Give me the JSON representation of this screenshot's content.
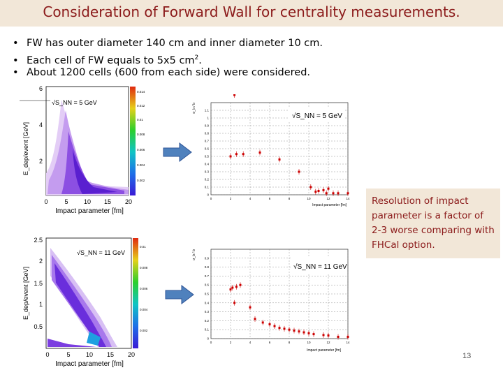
{
  "slide": {
    "title": "Consideration of  Forward Wall for centrality measurements.",
    "bullets": [
      "FW has outer diameter 140 cm and inner diameter 10 cm.",
      "Each cell of FW equals to 5x5 cm",
      "About  1200 cells (600 from each side) were considered."
    ],
    "bullet_superscript": "2",
    "bullet_suffix": ".",
    "note": "Resolution of impact parameter is a factor of 2-3  worse comparing with FHCal option.",
    "page_number": "13"
  },
  "plots": {
    "top_left": {
      "ylabel": "E_dep/event [GeV]",
      "xlabel": "Impact parameter [fm]",
      "energy_label": "√S_NN = 5 GeV",
      "x_ticks": [
        "0",
        "5",
        "10",
        "15",
        "20"
      ],
      "y_ticks": [
        "2",
        "4",
        "6"
      ],
      "z_ticks": [
        "0.014",
        "0.012",
        "0.01",
        "0.008",
        "0.006",
        "0.004",
        "0.002"
      ]
    },
    "bottom_left": {
      "ylabel": "E_dep/event [GeV]",
      "xlabel": "Impact parameter [fm]",
      "energy_label": "√S_NN = 11 GeV",
      "x_ticks": [
        "0",
        "5",
        "10",
        "15",
        "20"
      ],
      "y_ticks": [
        "0.5",
        "1",
        "1.5",
        "2",
        "2.5"
      ],
      "z_ticks": [
        "0.01",
        "0.008",
        "0.006",
        "0.004",
        "0.002"
      ]
    },
    "top_right": {
      "ylabel": "σ_b / b",
      "xlabel": "Impact parameter [fm]",
      "energy_label": "√S_NN = 5 GeV",
      "x_ticks": [
        "0",
        "2",
        "4",
        "6",
        "8",
        "10",
        "12",
        "14"
      ],
      "y_ticks": [
        "0",
        "0.1",
        "0.2",
        "0.3",
        "0.4",
        "0.5",
        "0.6",
        "0.7",
        "0.8",
        "0.9",
        "1",
        "1.1"
      ],
      "points": [
        {
          "x": 2.0,
          "y": 0.5
        },
        {
          "x": 2.4,
          "y": 1.3
        },
        {
          "x": 2.6,
          "y": 0.53
        },
        {
          "x": 3.3,
          "y": 0.53
        },
        {
          "x": 5.0,
          "y": 0.55
        },
        {
          "x": 7.0,
          "y": 0.46
        },
        {
          "x": 9.0,
          "y": 0.3
        },
        {
          "x": 10.2,
          "y": 0.1
        },
        {
          "x": 10.7,
          "y": 0.04
        },
        {
          "x": 11.0,
          "y": 0.05
        },
        {
          "x": 11.5,
          "y": 0.06
        },
        {
          "x": 11.8,
          "y": 0.02
        },
        {
          "x": 12.0,
          "y": 0.08
        },
        {
          "x": 12.5,
          "y": 0.02
        },
        {
          "x": 13.0,
          "y": 0.02
        },
        {
          "x": 14.0,
          "y": 0.02
        }
      ]
    },
    "bottom_right": {
      "ylabel": "σ_b / b",
      "xlabel": "Impact parameter [fm]",
      "energy_label": "√S_NN = 11 GeV",
      "x_ticks": [
        "0",
        "2",
        "4",
        "6",
        "8",
        "10",
        "12",
        "14"
      ],
      "y_ticks": [
        "0",
        "0.1",
        "0.2",
        "0.3",
        "0.4",
        "0.5",
        "0.6",
        "0.7",
        "0.8",
        "0.9"
      ],
      "points": [
        {
          "x": 2.0,
          "y": 0.55
        },
        {
          "x": 2.2,
          "y": 0.57
        },
        {
          "x": 2.4,
          "y": 0.4
        },
        {
          "x": 2.6,
          "y": 0.58
        },
        {
          "x": 3.0,
          "y": 0.6
        },
        {
          "x": 4.0,
          "y": 0.35
        },
        {
          "x": 4.5,
          "y": 0.22
        },
        {
          "x": 5.3,
          "y": 0.18
        },
        {
          "x": 6.0,
          "y": 0.16
        },
        {
          "x": 6.5,
          "y": 0.14
        },
        {
          "x": 7.0,
          "y": 0.12
        },
        {
          "x": 7.5,
          "y": 0.11
        },
        {
          "x": 8.0,
          "y": 0.1
        },
        {
          "x": 8.5,
          "y": 0.09
        },
        {
          "x": 9.0,
          "y": 0.08
        },
        {
          "x": 9.5,
          "y": 0.07
        },
        {
          "x": 10.0,
          "y": 0.06
        },
        {
          "x": 10.5,
          "y": 0.05
        },
        {
          "x": 11.5,
          "y": 0.04
        },
        {
          "x": 12.0,
          "y": 0.035
        },
        {
          "x": 13.0,
          "y": 0.02
        },
        {
          "x": 14.0,
          "y": 0.02
        }
      ]
    }
  },
  "colors": {
    "title": "#8b1a1a",
    "banner_bg": "#f2e7d8",
    "arrow_fill": "#4f81bd",
    "marker": "#cc0000"
  }
}
